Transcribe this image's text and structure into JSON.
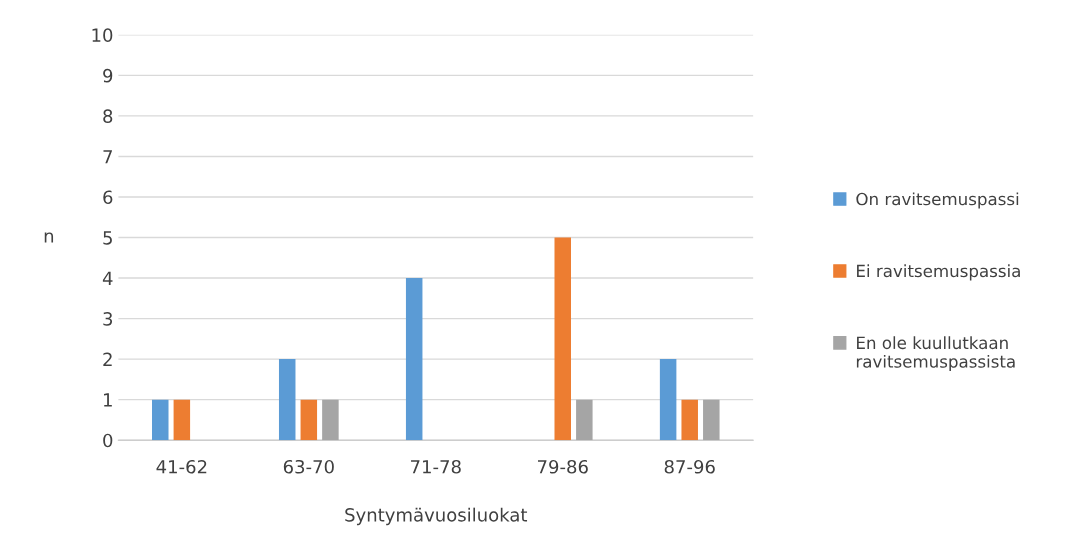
{
  "chart_data": {
    "type": "bar",
    "xlabel": "Syntymävuosiluokat",
    "ylabel": "n",
    "categories": [
      "41-62",
      "63-70",
      "71-78",
      "79-86",
      "87-96"
    ],
    "series": [
      {
        "name": "On ravitsemuspassi",
        "color": "#5b9bd5",
        "values": [
          1,
          2,
          4,
          null,
          2
        ]
      },
      {
        "name": "Ei ravitsemuspassia",
        "color": "#ed7d31",
        "values": [
          1,
          1,
          null,
          5,
          1
        ]
      },
      {
        "name": "En ole kuullutkaan ravitsemuspassista",
        "color": "#a5a5a5",
        "values": [
          null,
          1,
          null,
          1,
          1
        ]
      }
    ],
    "ylim": [
      0,
      10
    ],
    "yticks": [
      0,
      1,
      2,
      3,
      4,
      5,
      6,
      7,
      8,
      9,
      10
    ],
    "grid": "y",
    "legend": "right"
  }
}
